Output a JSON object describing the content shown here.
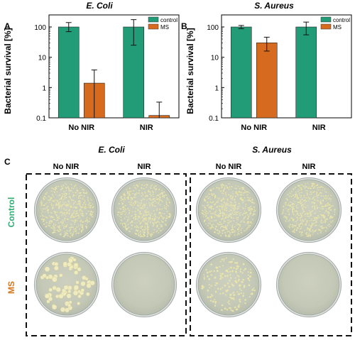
{
  "colors": {
    "control": "#229b77",
    "ms": "#d66b1f",
    "label_control": "#2fae74",
    "label_ms": "#d4781e",
    "dish_rim": "#a9b0ad",
    "dish_agar": "#c9ccbb",
    "colony_light": "#ece6a8",
    "colony_cream": "#f3eec2"
  },
  "chart_data": [
    {
      "type": "bar",
      "panel_label": "A",
      "title": "E. Coli",
      "xlabel": "",
      "ylabel": "Bacterial survival [%]",
      "ylim": [
        0.1,
        100
      ],
      "yscale": "log",
      "yticks": [
        "0.1",
        "1",
        "10",
        "100"
      ],
      "categories": [
        "No NIR",
        "NIR"
      ],
      "legend_position": "top-right",
      "series": [
        {
          "name": "control",
          "values": [
            100,
            100
          ],
          "error_low": [
            70,
            25
          ],
          "error_high": [
            140,
            175
          ]
        },
        {
          "name": "MS",
          "values": [
            1.4,
            0.12
          ],
          "error_low": [
            0.1,
            0.1
          ],
          "error_high": [
            3.8,
            0.33
          ]
        }
      ]
    },
    {
      "type": "bar",
      "panel_label": "B",
      "title": "S. Aureus",
      "xlabel": "",
      "ylabel": "Bacterial survival [%]",
      "ylim": [
        0.1,
        100
      ],
      "yscale": "log",
      "yticks": [
        "0.1",
        "1",
        "10",
        "100"
      ],
      "categories": [
        "No NIR",
        "NIR"
      ],
      "legend_position": "top-right",
      "series": [
        {
          "name": "control",
          "values": [
            100,
            100
          ],
          "error_low": [
            88,
            55
          ],
          "error_high": [
            112,
            145
          ]
        },
        {
          "name": "MS",
          "values": [
            30,
            0
          ],
          "error_low": [
            16,
            0
          ],
          "error_high": [
            46,
            0
          ]
        }
      ]
    }
  ],
  "panel_c": {
    "label": "C",
    "groups": [
      {
        "title": "E. Coli",
        "columns": [
          "No NIR",
          "NIR"
        ]
      },
      {
        "title": "S. Aureus",
        "columns": [
          "No NIR",
          "NIR"
        ]
      }
    ],
    "row_labels": [
      "Control",
      "MS"
    ],
    "dishes": [
      {
        "group": 0,
        "row": 0,
        "col": 0,
        "growth": "lawn"
      },
      {
        "group": 0,
        "row": 0,
        "col": 1,
        "growth": "lawn"
      },
      {
        "group": 1,
        "row": 0,
        "col": 0,
        "growth": "lawn"
      },
      {
        "group": 1,
        "row": 0,
        "col": 1,
        "growth": "lawn"
      },
      {
        "group": 0,
        "row": 1,
        "col": 0,
        "growth": "large-colonies"
      },
      {
        "group": 0,
        "row": 1,
        "col": 1,
        "growth": "none"
      },
      {
        "group": 1,
        "row": 1,
        "col": 0,
        "growth": "small-colonies"
      },
      {
        "group": 1,
        "row": 1,
        "col": 1,
        "growth": "none"
      }
    ]
  }
}
